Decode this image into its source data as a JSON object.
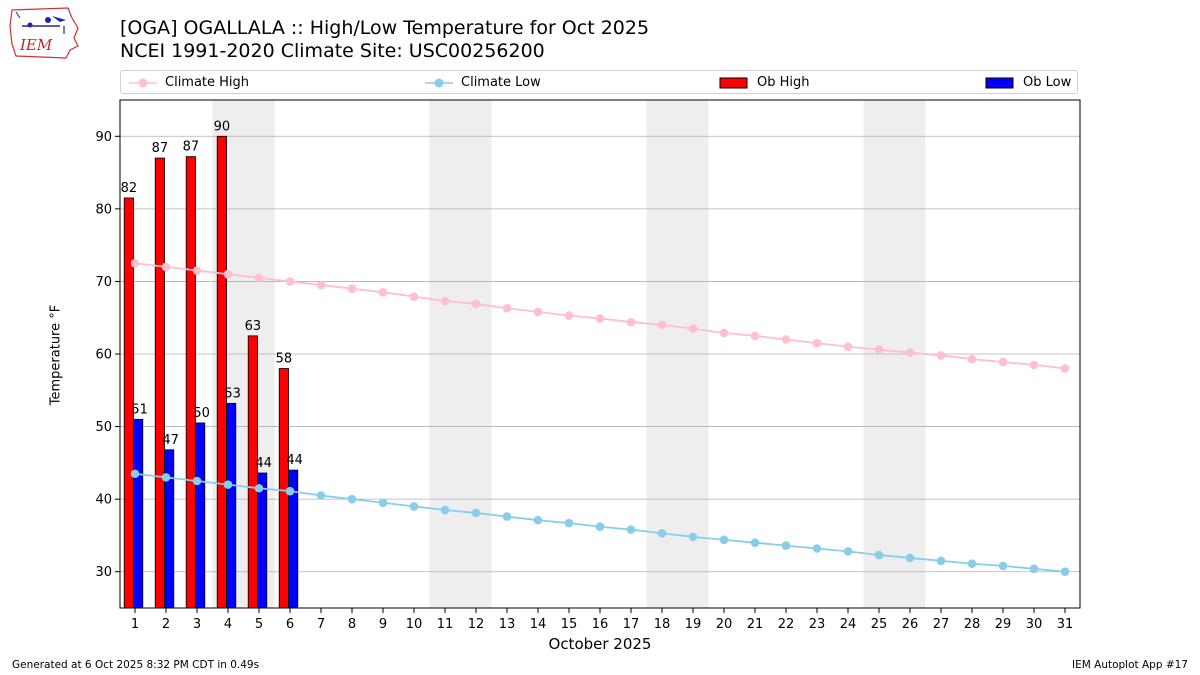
{
  "header": {
    "logo_text": "IEM",
    "title_line1": "[OGA] OGALLALA :: High/Low Temperature for Oct 2025",
    "title_line2": "NCEI 1991-2020 Climate Site: USC00256200"
  },
  "legend": {
    "climate_high": "Climate High",
    "climate_low": "Climate Low",
    "ob_high": "Ob High",
    "ob_low": "Ob Low"
  },
  "footer": {
    "left": "Generated at 6 Oct 2025 8:32 PM CDT in 0.49s",
    "right": "IEM Autoplot App #17"
  },
  "colors": {
    "climate_high": "#ffc0cb",
    "climate_low": "#87ceeb",
    "ob_high": "#ff0000",
    "ob_low": "#0000ff",
    "weekend_shade": "#eeeeee",
    "grid": "#b0b0b0"
  },
  "chart_data": {
    "type": "bar",
    "xlabel": "October 2025",
    "ylabel": "Temperature °F",
    "ylim": [
      25,
      95
    ],
    "yticks": [
      30,
      40,
      50,
      60,
      70,
      80,
      90
    ],
    "grid": "horizontal",
    "legend_position": "top",
    "days": [
      1,
      2,
      3,
      4,
      5,
      6,
      7,
      8,
      9,
      10,
      11,
      12,
      13,
      14,
      15,
      16,
      17,
      18,
      19,
      20,
      21,
      22,
      23,
      24,
      25,
      26,
      27,
      28,
      29,
      30,
      31
    ],
    "weekend_shading": [
      [
        4,
        5
      ],
      [
        11,
        12
      ],
      [
        18,
        19
      ],
      [
        25,
        26
      ]
    ],
    "series": [
      {
        "name": "Ob High",
        "kind": "bar",
        "days": [
          1,
          2,
          3,
          4,
          5,
          6
        ],
        "values": [
          81.5,
          87,
          87.2,
          90,
          62.5,
          58
        ],
        "labels": [
          "82",
          "87",
          "87",
          "90",
          "63",
          "58"
        ]
      },
      {
        "name": "Ob Low",
        "kind": "bar",
        "days": [
          1,
          2,
          3,
          4,
          5,
          6
        ],
        "values": [
          51,
          46.8,
          50.5,
          53.2,
          43.6,
          44
        ],
        "labels": [
          "51",
          "47",
          "50",
          "53",
          "44",
          "44"
        ]
      },
      {
        "name": "Climate High",
        "kind": "line",
        "values": [
          72.5,
          72.0,
          71.5,
          71.0,
          70.5,
          70.0,
          69.5,
          69.0,
          68.5,
          67.9,
          67.3,
          66.9,
          66.3,
          65.8,
          65.3,
          64.9,
          64.4,
          64.0,
          63.5,
          62.9,
          62.5,
          62.0,
          61.5,
          61.0,
          60.6,
          60.2,
          59.8,
          59.3,
          58.9,
          58.5,
          58.0
        ]
      },
      {
        "name": "Climate Low",
        "kind": "line",
        "values": [
          43.5,
          43.0,
          42.5,
          42.0,
          41.5,
          41.1,
          40.5,
          40.0,
          39.5,
          39.0,
          38.5,
          38.1,
          37.6,
          37.1,
          36.7,
          36.2,
          35.8,
          35.3,
          34.8,
          34.4,
          34.0,
          33.6,
          33.2,
          32.8,
          32.3,
          31.9,
          31.5,
          31.1,
          30.8,
          30.4,
          30.0
        ]
      }
    ]
  }
}
